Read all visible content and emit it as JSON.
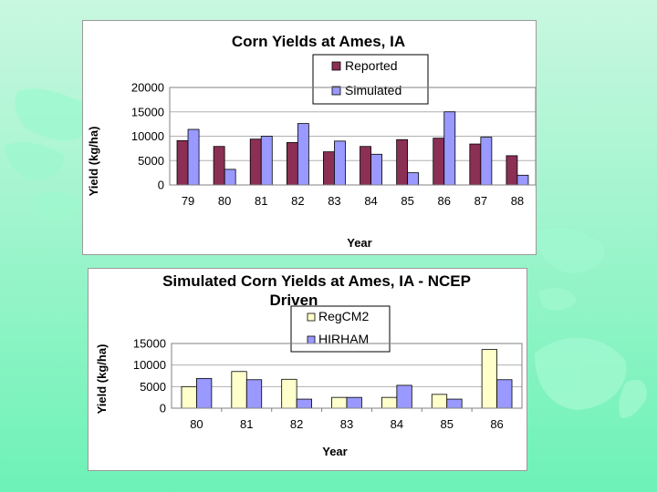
{
  "colors": {
    "reported": "#8b2f55",
    "simulated": "#9999ff",
    "regcm2": "#ffffcc",
    "hirham": "#9999ff"
  },
  "chart_data": [
    {
      "type": "bar",
      "title": "Corn Yields at Ames, IA",
      "xlabel": "Year",
      "ylabel": "Yield (kg/ha)",
      "ylim": [
        0,
        20000
      ],
      "yticks": [
        "0",
        "5000",
        "10000",
        "15000",
        "20000"
      ],
      "categories": [
        "79",
        "80",
        "81",
        "82",
        "83",
        "84",
        "85",
        "86",
        "87",
        "88"
      ],
      "series": [
        {
          "name": "Reported",
          "values": [
            9100,
            7900,
            9400,
            8700,
            6800,
            7900,
            9300,
            9600,
            8400,
            6000
          ]
        },
        {
          "name": "Simulated",
          "values": [
            11400,
            3200,
            10000,
            12600,
            9000,
            6300,
            2500,
            15000,
            9800,
            2000
          ]
        }
      ]
    },
    {
      "type": "bar",
      "title": "Simulated Corn Yields at Ames, IA - NCEP",
      "title_line2": "Driven",
      "xlabel": "Year",
      "ylabel": "Yield (kg/ha)",
      "ylim": [
        0,
        15000
      ],
      "yticks": [
        "0",
        "5000",
        "10000",
        "15000"
      ],
      "categories": [
        "80",
        "81",
        "82",
        "83",
        "84",
        "85",
        "86"
      ],
      "series": [
        {
          "name": "RegCM2",
          "values": [
            5000,
            8500,
            6700,
            2500,
            2500,
            3200,
            13600
          ]
        },
        {
          "name": "HIRHAM",
          "values": [
            6900,
            6600,
            2100,
            2500,
            5300,
            2100,
            6600
          ]
        }
      ]
    }
  ]
}
